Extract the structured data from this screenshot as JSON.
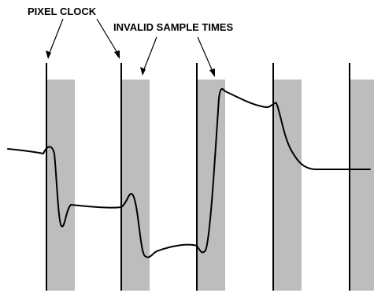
{
  "labels": {
    "pixel_clock": "PIXEL CLOCK",
    "invalid_sample_times": "INVALID SAMPLE TIMES"
  },
  "colors": {
    "shaded_band": "#bdbdbd",
    "line": "#000000",
    "background": "#ffffff"
  }
}
